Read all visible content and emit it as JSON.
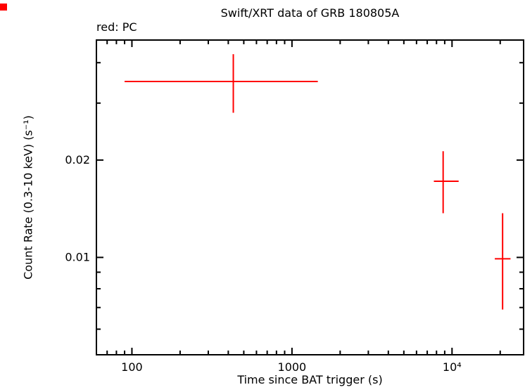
{
  "page_title": "Swift/XRT data of GRB 180805A",
  "mode_label": "red: PC",
  "accent_color": "#ff0000",
  "frame_color": "#000000",
  "background_color": "#ffffff",
  "chart_data": {
    "type": "scatter",
    "title": "Swift/XRT data of GRB 180805A",
    "xlabel": "Time since BAT trigger (s)",
    "ylabel": "Count Rate (0.3-10 keV) (s⁻¹)",
    "xscale": "log",
    "yscale": "log",
    "xlim": [
      60,
      28000
    ],
    "ylim": [
      0.005,
      0.047
    ],
    "grid": false,
    "legend_position": "none",
    "x_ticks": [
      {
        "value": 100,
        "label": "100"
      },
      {
        "value": 1000,
        "label": "1000"
      },
      {
        "value": 10000,
        "label": "10⁴"
      }
    ],
    "y_ticks": [
      {
        "value": 0.01,
        "label": "0.01"
      },
      {
        "value": 0.02,
        "label": "0.02"
      }
    ],
    "series": [
      {
        "name": "PC",
        "color": "#ff0000",
        "points": [
          {
            "t": 430,
            "t_lo": 90,
            "t_hi": 1450,
            "rate": 0.035,
            "rate_lo": 0.028,
            "rate_hi": 0.0425
          },
          {
            "t": 8800,
            "t_lo": 7700,
            "t_hi": 11000,
            "rate": 0.0172,
            "rate_lo": 0.0137,
            "rate_hi": 0.0213
          },
          {
            "t": 20700,
            "t_lo": 18500,
            "t_hi": 23200,
            "rate": 0.0099,
            "rate_lo": 0.0069,
            "rate_hi": 0.0137
          }
        ]
      }
    ]
  }
}
